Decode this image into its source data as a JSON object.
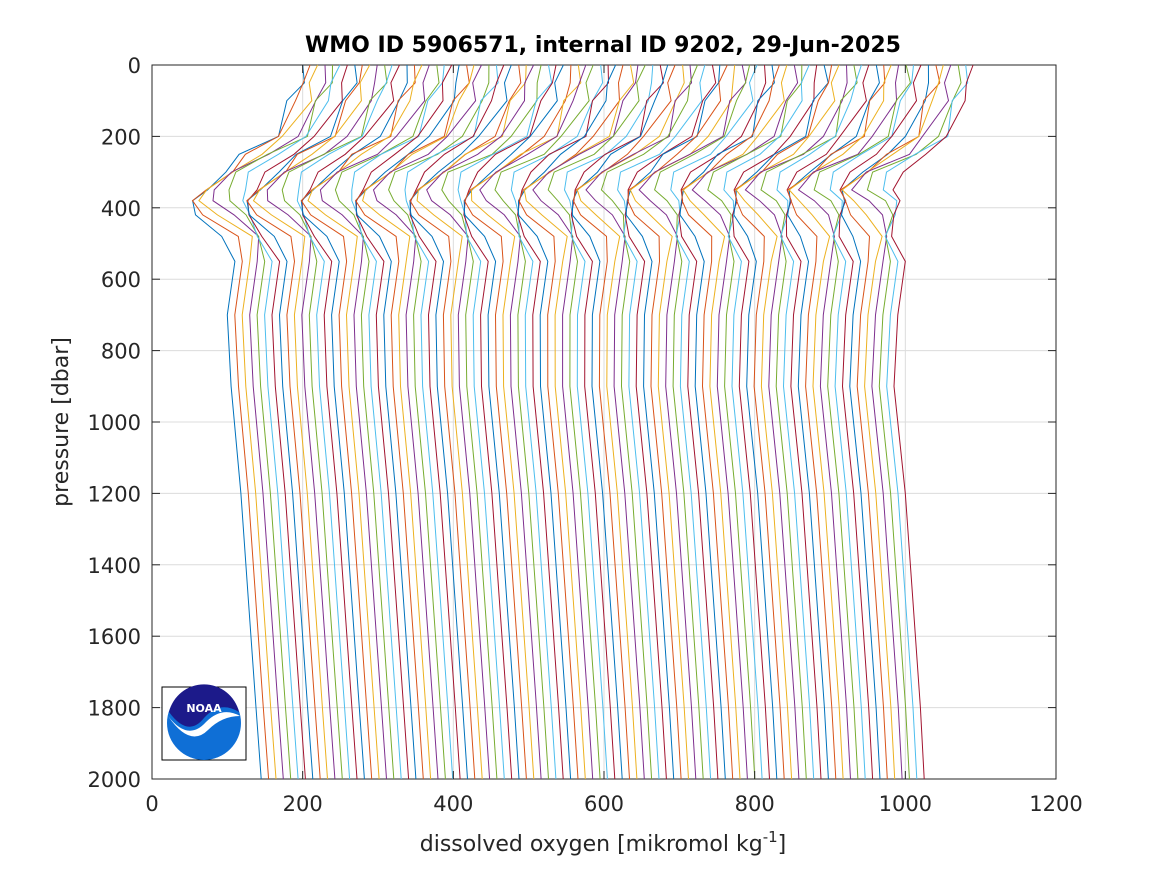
{
  "chart_data": {
    "type": "line",
    "title": "WMO ID 5906571, internal ID 9202, 29-Jun-2025",
    "xlabel": "dissolved oxygen [mikromol kg",
    "xlabel_sup": "-1",
    "xlabel_tail": "]",
    "ylabel": "pressure [dbar]",
    "xlim": [
      0,
      1200
    ],
    "ylim": [
      0,
      2000
    ],
    "y_reversed": true,
    "x_ticks": [
      0,
      200,
      400,
      600,
      800,
      1000,
      1200
    ],
    "y_ticks": [
      0,
      200,
      400,
      600,
      800,
      1000,
      1200,
      1400,
      1600,
      1800,
      2000
    ],
    "grid": true,
    "logo_text": "NOAA",
    "profile_offset_step": 10,
    "series_colors": [
      "#0072bd",
      "#d95319",
      "#edb120",
      "#7e2f8e",
      "#77ac30",
      "#4dbeee",
      "#a2142f"
    ],
    "pressure_levels": [
      0,
      50,
      100,
      200,
      250,
      300,
      350,
      380,
      420,
      480,
      550,
      700,
      900,
      1200,
      1500,
      1800,
      2000
    ],
    "first_profile_values": [
      200,
      195,
      185,
      160,
      120,
      85,
      65,
      55,
      70,
      100,
      110,
      100,
      105,
      118,
      128,
      138,
      145
    ],
    "last_profile_values": [
      1090,
      1088,
      1080,
      1060,
      1030,
      990,
      970,
      985,
      990,
      995,
      1000,
      990,
      985,
      1000,
      1010,
      1020,
      1025
    ],
    "series_count": 91
  }
}
